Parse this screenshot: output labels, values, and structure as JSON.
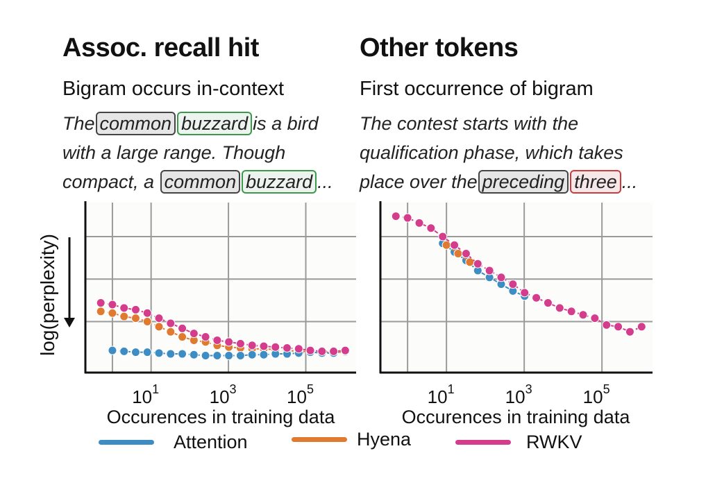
{
  "panels": [
    {
      "title": "Assoc. recall hit",
      "subtitle": "Bigram occurs in-context",
      "example_lines": [
        [
          {
            "t": "The"
          },
          {
            "t": "common",
            "box": "gray"
          },
          {
            "t": "buzzard",
            "box": "green"
          },
          {
            "t": "is a bird"
          }
        ],
        [
          {
            "t": "with a large range. Though"
          }
        ],
        [
          {
            "t": "compact, a "
          },
          {
            "t": "common",
            "box": "gray"
          },
          {
            "t": "buzzard",
            "box": "green"
          },
          {
            "t": "..."
          }
        ]
      ]
    },
    {
      "title": "Other tokens",
      "subtitle": "First occurrence of bigram",
      "example_lines": [
        [
          {
            "t": "The contest starts with the"
          }
        ],
        [
          {
            "t": "qualification phase, which takes"
          }
        ],
        [
          {
            "t": "place over the"
          },
          {
            "t": "preceding",
            "box": "gray"
          },
          {
            "t": "three",
            "box": "red"
          },
          {
            "t": "..."
          }
        ]
      ]
    }
  ],
  "chart_data": [
    {
      "type": "scatter",
      "title": "Assoc. recall hit",
      "xlabel": "Occurences in training data",
      "ylabel": "log(perplexity)",
      "xscale": "log",
      "xlim": [
        0.2,
        2000000
      ],
      "ylim": [
        0,
        1
      ],
      "xticks": [
        1,
        10,
        1000,
        100000
      ],
      "xtick_labels": [
        {
          "base": "10",
          "exp": "1",
          "at": 10
        },
        {
          "base": "10",
          "exp": "3",
          "at": 1000
        },
        {
          "base": "10",
          "exp": "5",
          "at": 100000
        }
      ],
      "yticks": [
        0.3,
        0.55,
        0.8
      ],
      "series": [
        {
          "name": "Hyena",
          "color": "#e07a30",
          "x": [
            0.5,
            1,
            2,
            4,
            8,
            16,
            32,
            64,
            128,
            256,
            512,
            1024,
            2048,
            4096,
            8192,
            16384,
            32768,
            65536,
            131072,
            262144,
            524288,
            1048576
          ],
          "y": [
            0.36,
            0.35,
            0.33,
            0.32,
            0.3,
            0.27,
            0.24,
            0.21,
            0.19,
            0.18,
            0.16,
            0.15,
            0.145,
            0.14,
            0.14,
            0.135,
            0.13,
            0.125,
            0.125,
            0.12,
            0.12,
            0.12
          ]
        },
        {
          "name": "Attention",
          "color": "#3d8cc4",
          "x": [
            1,
            2,
            4,
            8,
            16,
            32,
            64,
            128,
            256,
            512,
            1024,
            2048,
            4096,
            8192,
            16384,
            32768,
            65536,
            131072,
            262144,
            524288,
            1048576
          ],
          "y": [
            0.13,
            0.125,
            0.12,
            0.12,
            0.115,
            0.11,
            0.11,
            0.105,
            0.1,
            0.1,
            0.1,
            0.1,
            0.105,
            0.105,
            0.11,
            0.11,
            0.115,
            0.12,
            0.115,
            0.115,
            0.125
          ]
        },
        {
          "name": "RWKV",
          "color": "#d43d8c",
          "x": [
            0.5,
            1,
            2,
            4,
            8,
            16,
            32,
            64,
            128,
            256,
            512,
            1024,
            2048,
            4096,
            8192,
            16384,
            32768,
            65536,
            131072,
            262144,
            524288,
            1048576
          ],
          "y": [
            0.41,
            0.4,
            0.38,
            0.37,
            0.35,
            0.32,
            0.29,
            0.26,
            0.23,
            0.21,
            0.19,
            0.18,
            0.17,
            0.16,
            0.155,
            0.15,
            0.145,
            0.14,
            0.13,
            0.125,
            0.125,
            0.13
          ]
        }
      ]
    },
    {
      "type": "scatter",
      "title": "Other tokens",
      "xlabel": "Occurences in training data",
      "ylabel": "",
      "xscale": "log",
      "xlim": [
        0.2,
        2000000
      ],
      "ylim": [
        0,
        1
      ],
      "xticks": [
        1,
        10,
        1000,
        100000
      ],
      "xtick_labels": [
        {
          "base": "10",
          "exp": "1",
          "at": 10
        },
        {
          "base": "10",
          "exp": "3",
          "at": 1000
        },
        {
          "base": "10",
          "exp": "5",
          "at": 100000
        }
      ],
      "yticks": [
        0.3,
        0.55,
        0.8
      ],
      "series": [
        {
          "name": "Attention",
          "color": "#3d8cc4",
          "x": [
            8,
            16,
            32,
            64,
            128,
            256,
            512,
            1024
          ],
          "y": [
            0.76,
            0.71,
            0.66,
            0.6,
            0.56,
            0.52,
            0.48,
            0.45
          ]
        },
        {
          "name": "Hyena",
          "color": "#e07a30",
          "x": [
            10,
            20,
            40
          ],
          "y": [
            0.75,
            0.7,
            0.65
          ]
        },
        {
          "name": "RWKV",
          "color": "#d43d8c",
          "x": [
            0.5,
            1,
            2,
            4,
            8,
            16,
            32,
            64,
            128,
            256,
            512,
            1024,
            2048,
            4096,
            8192,
            16384,
            32768,
            65536,
            131072,
            262144,
            524288,
            1048576
          ],
          "y": [
            0.92,
            0.91,
            0.88,
            0.85,
            0.8,
            0.75,
            0.7,
            0.64,
            0.6,
            0.56,
            0.52,
            0.47,
            0.44,
            0.41,
            0.38,
            0.36,
            0.34,
            0.32,
            0.28,
            0.27,
            0.24,
            0.27
          ]
        }
      ]
    }
  ],
  "legend": [
    {
      "label": "Attention",
      "color": "#3d8cc4"
    },
    {
      "label": "Hyena",
      "color": "#e07a30"
    },
    {
      "label": "RWKV",
      "color": "#d43d8c"
    }
  ]
}
